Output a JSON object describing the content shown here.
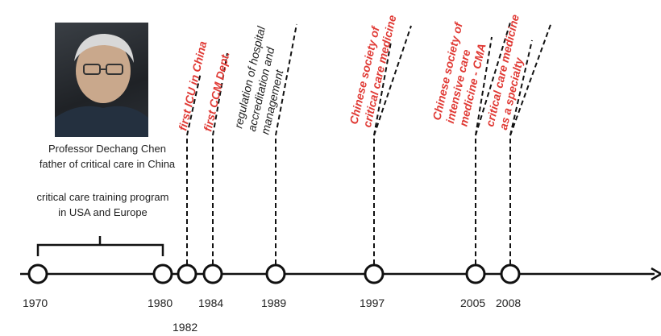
{
  "photo_caption": {
    "line1": "Professor Dechang Chen",
    "line2": "father of critical care in China"
  },
  "training_note": "critical care training program in USA and Europe",
  "years": [
    "1970",
    "1980",
    "1982",
    "1984",
    "1989",
    "1997",
    "2005",
    "2008"
  ],
  "events": [
    {
      "lines": [
        "first ICU in China"
      ],
      "color": "#e03a35"
    },
    {
      "lines": [
        "first CCM Dept."
      ],
      "color": "#e03a35"
    },
    {
      "lines": [
        "regulation of hospital",
        "accreditation and",
        "management"
      ],
      "color": "#222222"
    },
    {
      "lines": [
        "Chinese society of",
        "critical care medicine"
      ],
      "color": "#e03a35"
    },
    {
      "lines": [
        "Chinese society of",
        "intensive care",
        "medicine - CMA"
      ],
      "color": "#e03a35"
    },
    {
      "lines": [
        "critical care medicine",
        "as a specialty"
      ],
      "color": "#e03a35"
    }
  ]
}
